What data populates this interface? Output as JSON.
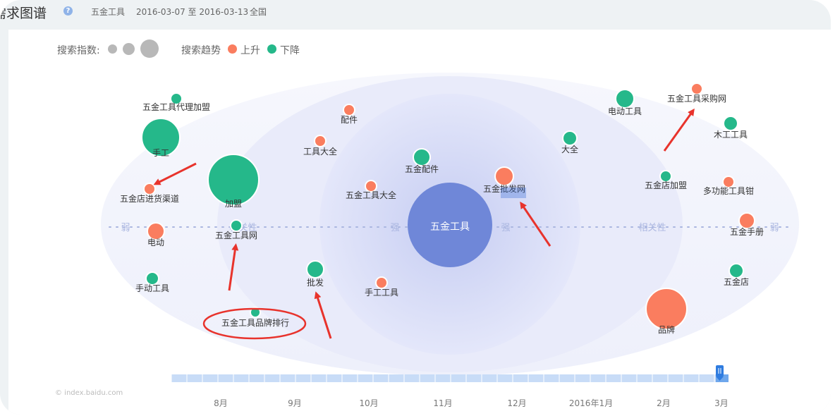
{
  "header": {
    "title": "需求图谱",
    "help_icon": "question-circle-icon",
    "keyword": "五金工具",
    "date_range": "2016-03-07 至 2016-03-13",
    "region": "全国"
  },
  "legend": {
    "index_label": "搜索指数:",
    "trend_label": "搜索趋势",
    "up_label": "上升",
    "down_label": "下降",
    "index_dot_color": "#b8b8b8"
  },
  "colors": {
    "up": "#fa7d5f",
    "down": "#25b88a",
    "center": "#6f87d8",
    "axis_text": "#aab6e0"
  },
  "chart_data": {
    "type": "bubble",
    "center": "五金工具",
    "axis_labels": [
      "弱",
      "相关性",
      "强",
      "强",
      "相关性",
      "弱"
    ],
    "nodes": [
      {
        "label": "五金工具代理加盟",
        "trend": "down",
        "size": 1
      },
      {
        "label": "手工",
        "trend": "down",
        "size": 3
      },
      {
        "label": "五金店进货渠道",
        "trend": "up",
        "size": 1
      },
      {
        "label": "加盟",
        "trend": "down",
        "size": 4
      },
      {
        "label": "电动",
        "trend": "up",
        "size": 1.5
      },
      {
        "label": "五金工具网",
        "trend": "down",
        "size": 1
      },
      {
        "label": "手动工具",
        "trend": "down",
        "size": 1.2
      },
      {
        "label": "五金工具品牌排行",
        "trend": "down",
        "size": 0.9
      },
      {
        "label": "配件",
        "trend": "up",
        "size": 1.1
      },
      {
        "label": "工具大全",
        "trend": "up",
        "size": 1.1
      },
      {
        "label": "五金配件",
        "trend": "down",
        "size": 1.5
      },
      {
        "label": "五金工具大全",
        "trend": "up",
        "size": 1.1
      },
      {
        "label": "批发",
        "trend": "down",
        "size": 1.5
      },
      {
        "label": "手工工具",
        "trend": "up",
        "size": 1.1
      },
      {
        "label": "五金批发网",
        "trend": "up",
        "size": 1.6
      },
      {
        "label": "大全",
        "trend": "down",
        "size": 1.3
      },
      {
        "label": "电动工具",
        "trend": "down",
        "size": 1.6
      },
      {
        "label": "五金工具采购网",
        "trend": "up",
        "size": 1
      },
      {
        "label": "木工工具",
        "trend": "down",
        "size": 1.3
      },
      {
        "label": "五金店加盟",
        "trend": "down",
        "size": 1
      },
      {
        "label": "多功能工具钳",
        "trend": "up",
        "size": 1
      },
      {
        "label": "五金手册",
        "trend": "up",
        "size": 1.4
      },
      {
        "label": "五金店",
        "trend": "down",
        "size": 1.3
      },
      {
        "label": "品牌",
        "trend": "up",
        "size": 3.3
      }
    ]
  },
  "timeline": {
    "labels": [
      "8月",
      "9月",
      "10月",
      "11月",
      "12月",
      "2016年1月",
      "2月",
      "3月"
    ],
    "handle_icon": "slider-handle-icon"
  },
  "watermark": "© index.baidu.com"
}
